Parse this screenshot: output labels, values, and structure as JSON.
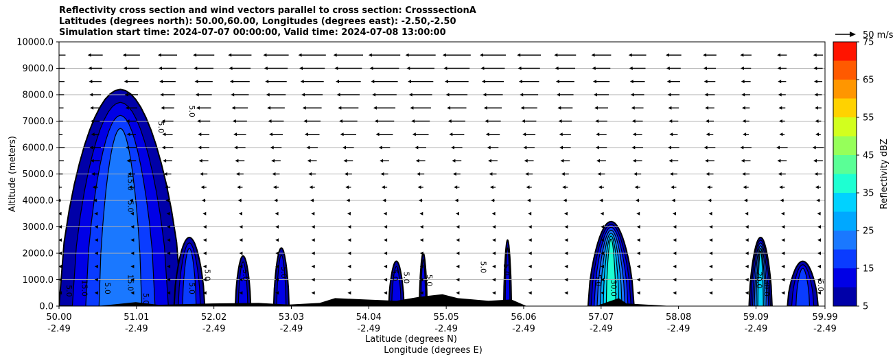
{
  "chart_data": {
    "type": "heatmap",
    "title_lines": [
      "Reflectivity cross section and wind vectors parallel to cross section: CrosssectionA",
      "Latitudes (degrees north): 50.00,60.00, Longitudes (degrees east): -2.50,-2.50",
      "Simulation start time: 2024-07-07 00:00:00, Valid time: 2024-07-08 13:00:00"
    ],
    "ylabel": "Altitude (meters)",
    "xlabel_lat": "Latitude (degrees N)",
    "xlabel_lon": "Longitude (degrees E)",
    "ylim": [
      0,
      10000
    ],
    "y_ticks": [
      "0.0",
      "1000.0",
      "2000.0",
      "3000.0",
      "4000.0",
      "5000.0",
      "6000.0",
      "7000.0",
      "8000.0",
      "9000.0",
      "10000.0"
    ],
    "xlim": [
      50.0,
      59.99
    ],
    "x_ticks": [
      {
        "lat": "50.00",
        "lon": "-2.49"
      },
      {
        "lat": "51.01",
        "lon": "-2.49"
      },
      {
        "lat": "52.02",
        "lon": "-2.49"
      },
      {
        "lat": "53.03",
        "lon": "-2.49"
      },
      {
        "lat": "54.04",
        "lon": "-2.49"
      },
      {
        "lat": "55.05",
        "lon": "-2.49"
      },
      {
        "lat": "56.06",
        "lon": "-2.49"
      },
      {
        "lat": "57.07",
        "lon": "-2.49"
      },
      {
        "lat": "58.08",
        "lon": "-2.49"
      },
      {
        "lat": "59.09",
        "lon": "-2.49"
      },
      {
        "lat": "59.99",
        "lon": "-2.49"
      }
    ],
    "grid": "horizontal",
    "colorbar": {
      "label": "Reflectivity dBZ",
      "levels": [
        5,
        10,
        15,
        20,
        25,
        30,
        35,
        40,
        45,
        50,
        55,
        60,
        65,
        70,
        75
      ],
      "tick_labels": [
        "5",
        "15",
        "25",
        "35",
        "45",
        "55",
        "65",
        "75"
      ],
      "colors": [
        "#0000a8",
        "#0000e6",
        "#0a3cff",
        "#1a78ff",
        "#00a8ff",
        "#00d2ff",
        "#1effd2",
        "#5aff96",
        "#96ff5a",
        "#d2ff1e",
        "#ffd200",
        "#ff9600",
        "#ff5a00",
        "#ff1400",
        "#a80000"
      ]
    },
    "wind_key": {
      "label": "50 m/s",
      "value": 50
    },
    "contour_labels": [
      "5.0",
      "15.0",
      "10.0",
      "20.0",
      "30.0"
    ],
    "echo_cells": [
      {
        "lat_start": 50.0,
        "lat_end": 51.6,
        "top_m": 8200,
        "max_dbz": 20
      },
      {
        "lat_start": 51.5,
        "lat_end": 51.9,
        "top_m": 2600,
        "max_dbz": 15
      },
      {
        "lat_start": 52.3,
        "lat_end": 52.5,
        "top_m": 1900,
        "max_dbz": 10
      },
      {
        "lat_start": 52.8,
        "lat_end": 53.0,
        "top_m": 2200,
        "max_dbz": 10
      },
      {
        "lat_start": 54.3,
        "lat_end": 54.5,
        "top_m": 1700,
        "max_dbz": 10
      },
      {
        "lat_start": 54.7,
        "lat_end": 54.8,
        "top_m": 2000,
        "max_dbz": 10
      },
      {
        "lat_start": 55.8,
        "lat_end": 55.9,
        "top_m": 2500,
        "max_dbz": 10
      },
      {
        "lat_start": 56.9,
        "lat_end": 57.5,
        "top_m": 3200,
        "max_dbz": 35
      },
      {
        "lat_start": 59.0,
        "lat_end": 59.3,
        "top_m": 2600,
        "max_dbz": 30
      },
      {
        "lat_start": 59.5,
        "lat_end": 59.9,
        "top_m": 1700,
        "max_dbz": 15
      }
    ]
  }
}
